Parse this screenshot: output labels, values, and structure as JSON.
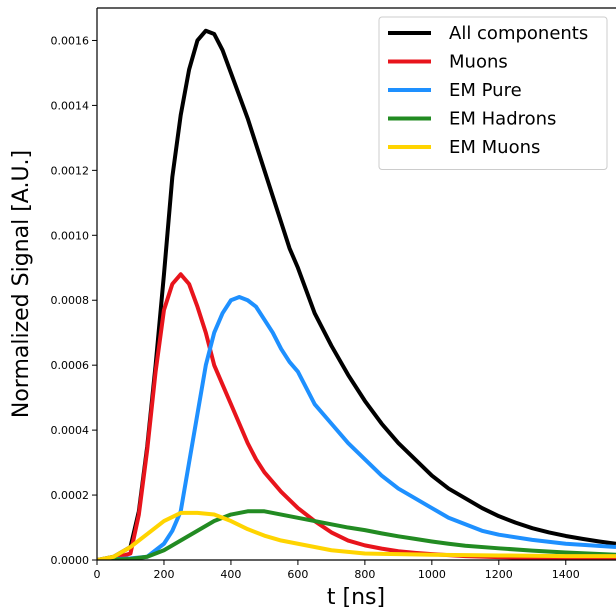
{
  "chart_data": {
    "type": "line",
    "xlabel": "t [ns]",
    "ylabel": "Normalized Signal [A.U.]",
    "xlim": [
      0,
      1550
    ],
    "ylim": [
      0,
      0.0017
    ],
    "x_ticks": [
      0,
      200,
      400,
      600,
      800,
      1000,
      1200,
      1400
    ],
    "y_ticks": [
      0.0,
      0.0002,
      0.0004,
      0.0006,
      0.0008,
      0.001,
      0.0012,
      0.0014,
      0.0016
    ],
    "y_tick_labels": [
      "0.0000",
      "0.0002",
      "0.0004",
      "0.0006",
      "0.0008",
      "0.0010",
      "0.0012",
      "0.0014",
      "0.0016"
    ],
    "grid": false,
    "legend_position": "top-right",
    "series": [
      {
        "name": "All components",
        "color": "#000000",
        "x": [
          0,
          50,
          100,
          125,
          150,
          175,
          200,
          225,
          250,
          275,
          300,
          325,
          350,
          375,
          400,
          425,
          450,
          475,
          500,
          525,
          550,
          575,
          600,
          650,
          700,
          750,
          800,
          850,
          900,
          950,
          1000,
          1050,
          1100,
          1150,
          1200,
          1250,
          1300,
          1350,
          1400,
          1450,
          1500,
          1550
        ],
        "y": [
          0,
          1e-05,
          4e-05,
          0.00015,
          0.00035,
          0.0006,
          0.00088,
          0.00118,
          0.00137,
          0.00151,
          0.0016,
          0.00163,
          0.00162,
          0.00157,
          0.0015,
          0.00143,
          0.00136,
          0.00128,
          0.0012,
          0.00112,
          0.00104,
          0.00096,
          0.0009,
          0.00076,
          0.00066,
          0.00057,
          0.00049,
          0.00042,
          0.00036,
          0.00031,
          0.00026,
          0.00022,
          0.00019,
          0.00016,
          0.000135,
          0.000115,
          9.8e-05,
          8.5e-05,
          7.4e-05,
          6.5e-05,
          5.7e-05,
          5e-05
        ]
      },
      {
        "name": "Muons",
        "color": "#e8141c",
        "x": [
          0,
          50,
          100,
          125,
          150,
          175,
          200,
          225,
          250,
          275,
          300,
          325,
          350,
          375,
          400,
          425,
          450,
          475,
          500,
          550,
          600,
          650,
          700,
          750,
          800,
          850,
          900,
          950,
          1000,
          1050,
          1100,
          1200,
          1300,
          1400,
          1550
        ],
        "y": [
          0,
          5e-06,
          2e-05,
          0.00014,
          0.00034,
          0.00058,
          0.00077,
          0.00085,
          0.00088,
          0.00085,
          0.00078,
          0.0007,
          0.0006,
          0.00054,
          0.00048,
          0.00042,
          0.00036,
          0.00031,
          0.00027,
          0.00021,
          0.00016,
          0.00012,
          8.5e-05,
          6e-05,
          4.5e-05,
          3.5e-05,
          2.7e-05,
          2.2e-05,
          1.8e-05,
          1.5e-05,
          1.2e-05,
          9e-06,
          6e-06,
          4e-06,
          3e-06
        ]
      },
      {
        "name": "EM Pure",
        "color": "#1e90ff",
        "x": [
          0,
          100,
          150,
          200,
          225,
          250,
          275,
          300,
          325,
          350,
          375,
          400,
          425,
          450,
          475,
          500,
          525,
          550,
          575,
          600,
          650,
          700,
          750,
          800,
          850,
          900,
          950,
          1000,
          1050,
          1100,
          1150,
          1200,
          1300,
          1400,
          1550
        ],
        "y": [
          0,
          5e-06,
          1e-05,
          5e-05,
          9e-05,
          0.00015,
          0.0003,
          0.00045,
          0.0006,
          0.0007,
          0.00076,
          0.0008,
          0.00081,
          0.0008,
          0.00078,
          0.00074,
          0.0007,
          0.00065,
          0.00061,
          0.00058,
          0.00048,
          0.00042,
          0.00036,
          0.00031,
          0.00026,
          0.00022,
          0.00019,
          0.00016,
          0.00013,
          0.00011,
          9e-05,
          7.8e-05,
          6.2e-05,
          5e-05,
          4e-05
        ]
      },
      {
        "name": "EM Hadrons",
        "color": "#228b22",
        "x": [
          0,
          100,
          150,
          200,
          250,
          300,
          350,
          400,
          450,
          500,
          550,
          600,
          650,
          700,
          750,
          800,
          850,
          900,
          950,
          1000,
          1050,
          1100,
          1200,
          1300,
          1400,
          1550
        ],
        "y": [
          0,
          3e-06,
          1e-05,
          3e-05,
          6e-05,
          9e-05,
          0.00012,
          0.00014,
          0.00015,
          0.00015,
          0.00014,
          0.00013,
          0.00012,
          0.00011,
          0.0001,
          9.2e-05,
          8.2e-05,
          7.3e-05,
          6.5e-05,
          5.7e-05,
          5e-05,
          4.4e-05,
          3.6e-05,
          2.9e-05,
          2.3e-05,
          1.6e-05
        ]
      },
      {
        "name": "EM Muons",
        "color": "#ffd400",
        "x": [
          0,
          50,
          100,
          150,
          200,
          250,
          300,
          350,
          400,
          450,
          500,
          550,
          600,
          650,
          700,
          750,
          800,
          900,
          1000,
          1100,
          1200,
          1300,
          1400,
          1550
        ],
        "y": [
          0,
          1e-05,
          4e-05,
          8e-05,
          0.00012,
          0.000145,
          0.000145,
          0.00014,
          0.00012,
          9.5e-05,
          7.5e-05,
          6e-05,
          5e-05,
          4e-05,
          3e-05,
          2.5e-05,
          2e-05,
          1.8e-05,
          1.6e-05,
          1.5e-05,
          1.4e-05,
          1.3e-05,
          1.2e-05,
          1.2e-05
        ]
      }
    ]
  }
}
